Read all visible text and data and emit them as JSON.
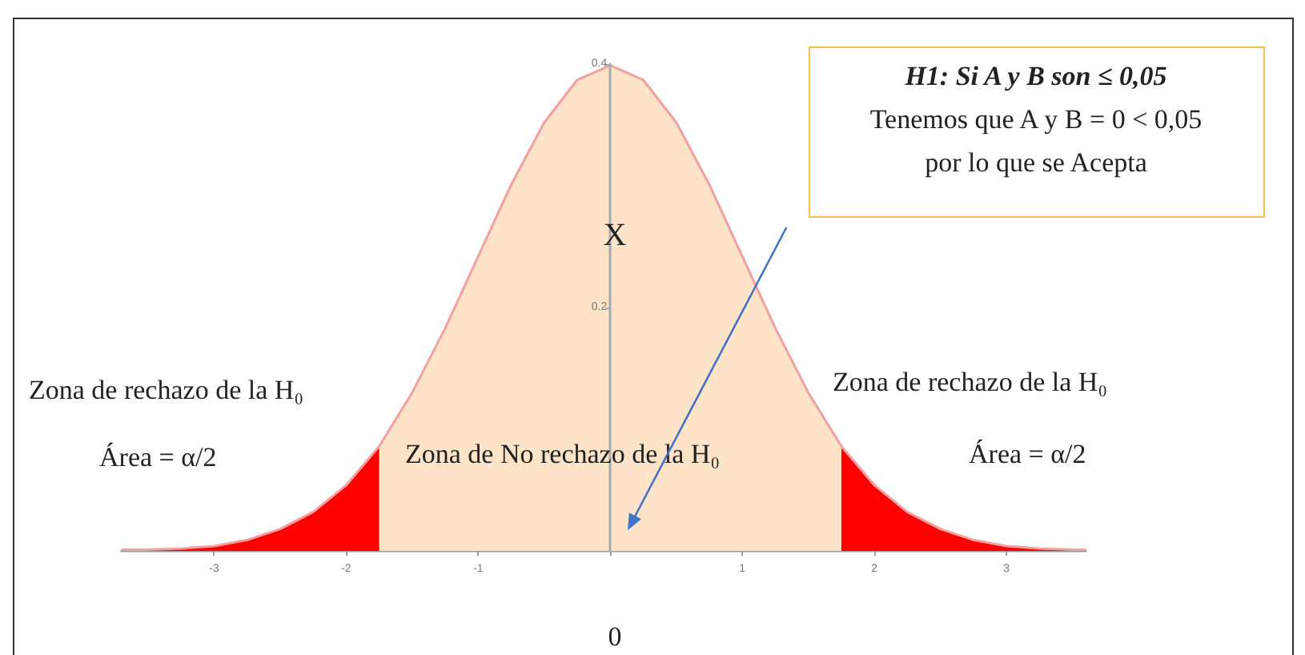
{
  "chart_data": {
    "type": "line",
    "xlim": [
      -3.7,
      3.6
    ],
    "ylim": [
      0,
      0.4
    ],
    "xticks": [
      -3,
      -2,
      -1,
      {
        "value": 0,
        "label": null
      },
      1,
      2,
      3
    ],
    "yticks": [
      0.2,
      0.4
    ],
    "grid": false,
    "marker": "none",
    "series": [
      {
        "type": "area",
        "color": "#fde3c8",
        "x": [
          -1.75,
          -1.5,
          -1.25,
          -1,
          -0.75,
          -0.5,
          -0.25,
          0,
          0.25,
          0.5,
          0.75,
          1,
          1.25,
          1.5,
          1.75
        ],
        "values": [
          0.086,
          0.13,
          0.183,
          0.242,
          0.301,
          0.352,
          0.387,
          0.399,
          0.387,
          0.352,
          0.301,
          0.242,
          0.183,
          0.13,
          0.086
        ]
      },
      {
        "type": "area",
        "color": "#ff0000",
        "x": [
          -3.7,
          -3.5,
          -3.25,
          -3,
          -2.75,
          -2.5,
          -2.25,
          -2,
          -1.75
        ],
        "values": [
          0.001,
          0.001,
          0.002,
          0.004,
          0.009,
          0.018,
          0.032,
          0.054,
          0.086
        ]
      },
      {
        "type": "area",
        "color": "#ff0000",
        "x": [
          1.75,
          2,
          2.25,
          2.5,
          2.75,
          3,
          3.25,
          3.5,
          3.6
        ],
        "values": [
          0.086,
          0.054,
          0.032,
          0.018,
          0.009,
          0.004,
          0.002,
          0.001,
          0.001
        ]
      },
      {
        "color": "#f4a0a0",
        "x": [
          -3.7,
          -3.5,
          -3.25,
          -3,
          -2.75,
          -2.5,
          -2.25,
          -2,
          -1.75,
          -1.5,
          -1.25,
          -1,
          -0.75,
          -0.5,
          -0.25,
          0,
          0.25,
          0.5,
          0.75,
          1,
          1.25,
          1.5,
          1.75,
          2,
          2.25,
          2.5,
          2.75,
          3,
          3.25,
          3.5,
          3.6
        ],
        "values": [
          0.001,
          0.001,
          0.002,
          0.004,
          0.009,
          0.018,
          0.032,
          0.054,
          0.086,
          0.13,
          0.183,
          0.242,
          0.301,
          0.352,
          0.387,
          0.399,
          0.387,
          0.352,
          0.301,
          0.242,
          0.183,
          0.13,
          0.086,
          0.054,
          0.032,
          0.018,
          0.009,
          0.004,
          0.002,
          0.001,
          0.001
        ]
      }
    ],
    "annotations": [
      "Zona de rechazo de la H₀",
      "Área = α/2",
      "Zona de No rechazo de la H₀",
      "Zona de rechazo de la H₀",
      "Área = α/2",
      "X",
      "H1: Si A y B son ≤ 0,05",
      "Tenemos que A y B = 0 < 0,05",
      "por lo que se Acepta",
      "0"
    ]
  }
}
